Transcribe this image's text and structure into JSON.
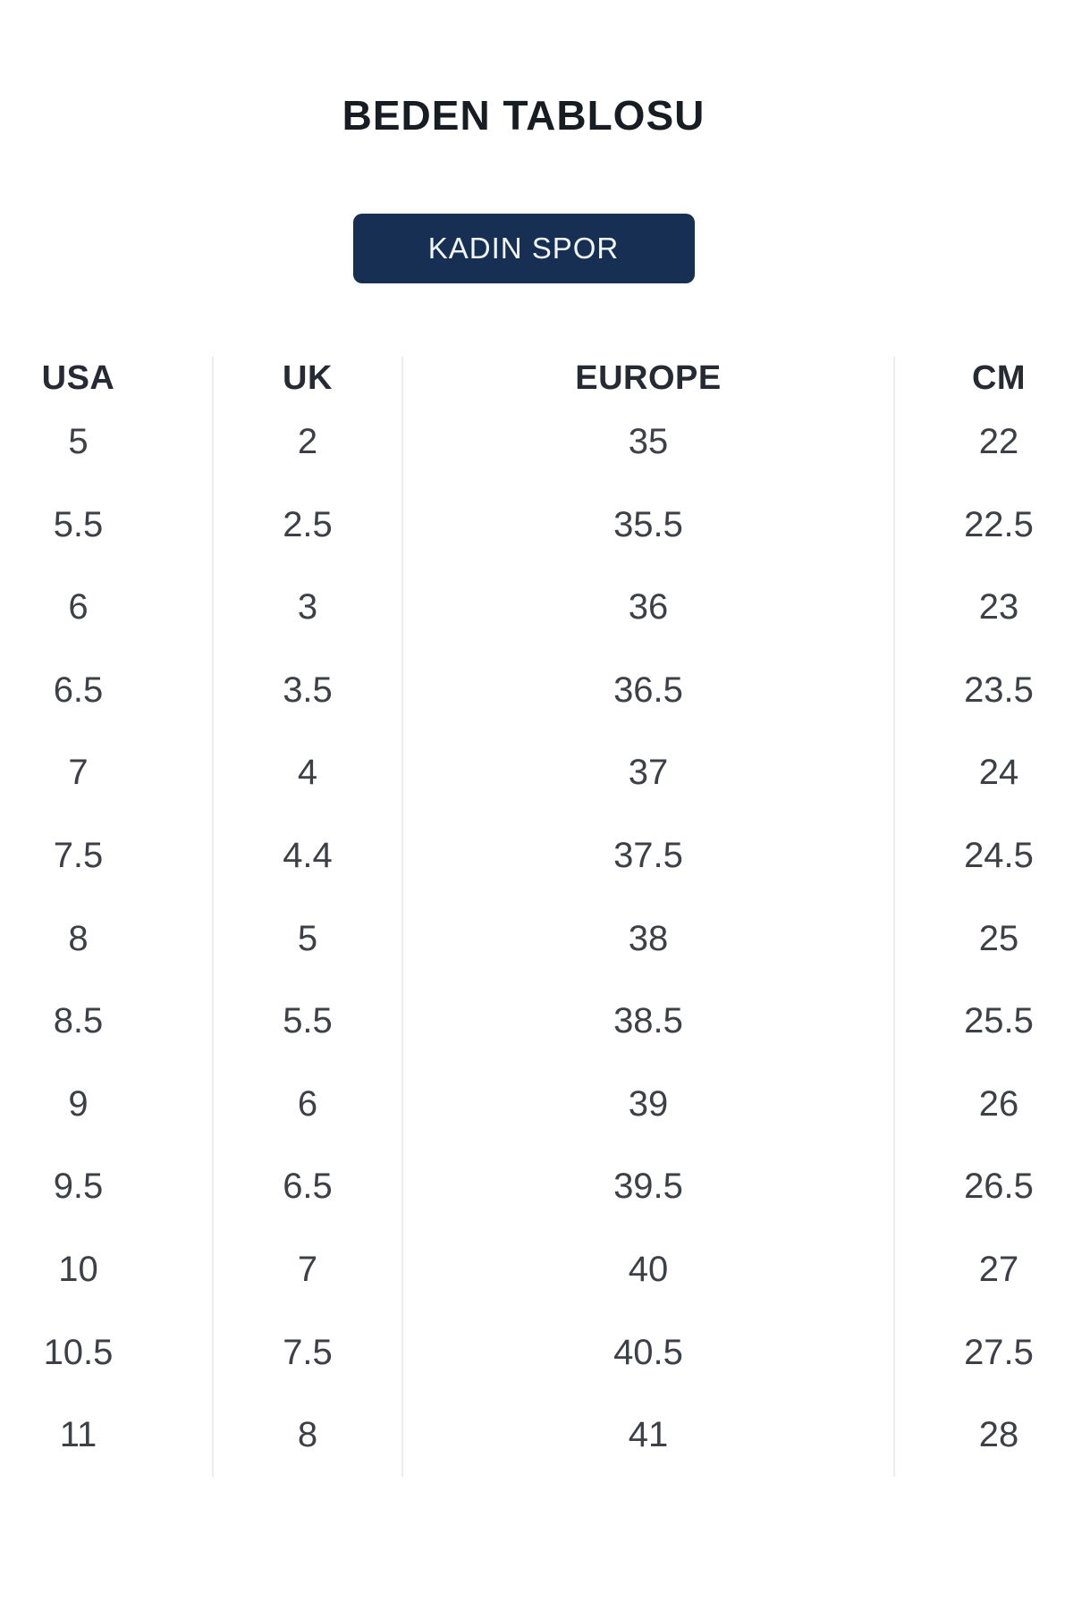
{
  "page": {
    "title": "BEDEN TABLOSU"
  },
  "category_button": {
    "label": "KADIN SPOR"
  },
  "table": {
    "headers": [
      "USA",
      "UK",
      "EUROPE",
      "CM"
    ],
    "rows": [
      [
        "5",
        "2",
        "35",
        "22"
      ],
      [
        "5.5",
        "2.5",
        "35.5",
        "22.5"
      ],
      [
        "6",
        "3",
        "36",
        "23"
      ],
      [
        "6.5",
        "3.5",
        "36.5",
        "23.5"
      ],
      [
        "7",
        "4",
        "37",
        "24"
      ],
      [
        "7.5",
        "4.4",
        "37.5",
        "24.5"
      ],
      [
        "8",
        "5",
        "38",
        "25"
      ],
      [
        "8.5",
        "5.5",
        "38.5",
        "25.5"
      ],
      [
        "9",
        "6",
        "39",
        "26"
      ],
      [
        "9.5",
        "6.5",
        "39.5",
        "26.5"
      ],
      [
        "10",
        "7",
        "40",
        "27"
      ],
      [
        "10.5",
        "7.5",
        "40.5",
        "27.5"
      ],
      [
        "11",
        "8",
        "41",
        "28"
      ]
    ]
  },
  "colors": {
    "title_text": "#181c23",
    "button_bg": "#162f52",
    "button_text": "#f2f7fc",
    "header_text": "#262b33",
    "cell_text": "#3d4047",
    "divider": "#ececec"
  }
}
